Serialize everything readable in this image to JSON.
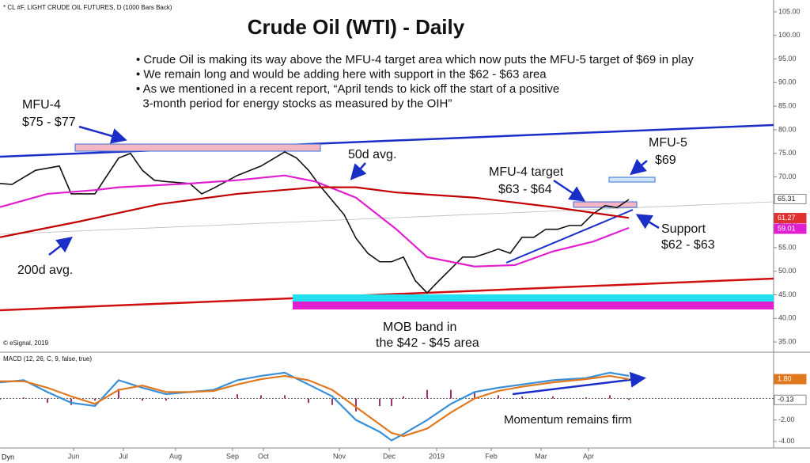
{
  "chart_data": [
    {
      "type": "line",
      "title": "Crude Oil (WTI) - Daily",
      "subtitle": "* CL #F, LIGHT CRUDE OIL FUTURES, D (1000 Bars Back)",
      "bullets": [
        [
          "• Crude Oil is making its way above the MFU-4 target area which now puts the MFU-5 target of $69 in play"
        ],
        [
          "• We remain long and would be adding here with support in the $62 - $63 area"
        ],
        [
          "• As we mentioned in a recent report, “April tends to kick off the start of a positive",
          "  3-month period for energy stocks as measured by the OIH”"
        ]
      ],
      "annotations": [
        "MFU-4",
        "$75 - $77",
        "50d avg.",
        "MFU-4 target",
        "$63 - $64",
        "MFU-5",
        "$69",
        "Support",
        "$62 - $63",
        "200d avg.",
        "MOB band in",
        "the $42 - $45 area"
      ],
      "credit": "© eSignal, 2019",
      "xlim": [
        0,
        326
      ],
      "ylim": [
        33.5,
        106.5
      ],
      "yticks": [
        {
          "value": 35,
          "label": "35.00"
        },
        {
          "value": 40,
          "label": "40.00"
        },
        {
          "value": 45,
          "label": "45.00"
        },
        {
          "value": 50,
          "label": "50.00"
        },
        {
          "value": 55,
          "label": "55.00"
        },
        {
          "value": 60,
          "label": "60.00"
        },
        {
          "value": 65,
          "label": "65.00"
        },
        {
          "value": 70,
          "label": "70.00"
        },
        {
          "value": 75,
          "label": "75.00"
        },
        {
          "value": 80,
          "label": "80.00"
        },
        {
          "value": 85,
          "label": "85.00"
        },
        {
          "value": 90,
          "label": "90.00"
        },
        {
          "value": 95,
          "label": "95.00"
        },
        {
          "value": 100,
          "label": "100.00"
        },
        {
          "value": 105,
          "label": "105.00"
        }
      ],
      "series": [
        {
          "color": "#111111",
          "x": [
            0,
            5,
            15,
            25,
            30,
            40,
            50,
            55,
            60,
            65,
            70,
            80,
            85,
            90,
            100,
            110,
            120,
            125,
            130,
            135,
            140,
            145,
            150,
            155,
            160,
            165,
            170,
            175,
            180,
            185,
            190,
            195,
            200,
            205,
            210,
            215,
            220,
            225,
            230,
            235,
            240,
            245,
            250,
            255,
            260,
            265
          ],
          "values": [
            68.6,
            68.4,
            71.4,
            72.3,
            66.4,
            66.4,
            74,
            75,
            71.4,
            69.3,
            69,
            68.6,
            66.4,
            67.6,
            70.3,
            72.3,
            75.3,
            74,
            71.4,
            68,
            65,
            62,
            57,
            53.8,
            52,
            52,
            53,
            48,
            45.4,
            48,
            50.5,
            53,
            53,
            53.8,
            54.7,
            53.8,
            57.2,
            57.2,
            58.9,
            58.9,
            59.7,
            59.7,
            62.2,
            63.9,
            63.5,
            65.2
          ]
        },
        {
          "color": "#e020d0",
          "x": [
            0,
            20,
            40,
            50,
            80,
            100,
            120,
            133,
            150,
            167,
            180,
            200,
            217,
            233,
            250,
            265
          ],
          "values": [
            63.6,
            66.4,
            67.2,
            67.8,
            68.6,
            69.3,
            70.3,
            69,
            65.6,
            58.9,
            53,
            51,
            51.3,
            54.2,
            56.3,
            59.2
          ]
        },
        {
          "color": "#c00000",
          "x": [
            0,
            33,
            67,
            100,
            133,
            150,
            167,
            200,
            233,
            265
          ],
          "values": [
            57.2,
            60.5,
            64.2,
            66.4,
            67.8,
            67.8,
            66.7,
            65.6,
            63.6,
            61.3
          ]
        }
      ],
      "last_labels": [
        65.31,
        61.27,
        59.01
      ]
    },
    {
      "type": "macd",
      "title": "MACD (12, 26, C, 9, false, true)",
      "annotations": [
        "Momentum remains firm"
      ],
      "corner_label": "Dyn",
      "xlim": [
        0,
        326
      ],
      "xticks": [
        {
          "value": 31,
          "label": "Jun"
        },
        {
          "value": 52,
          "label": "Jul"
        },
        {
          "value": 74,
          "label": "Aug"
        },
        {
          "value": 98,
          "label": "Sep"
        },
        {
          "value": 111,
          "label": "Oct"
        },
        {
          "value": 143,
          "label": "Nov"
        },
        {
          "value": 164,
          "label": "Dec"
        },
        {
          "value": 184,
          "label": "2019"
        },
        {
          "value": 207,
          "label": "Feb"
        },
        {
          "value": 228,
          "label": "Mar"
        },
        {
          "value": 248,
          "label": "Apr"
        }
      ],
      "ylim": [
        -4.6,
        3.2
      ],
      "yticks": [
        {
          "value": -4,
          "label": "-4.00"
        },
        {
          "value": -2,
          "label": "-2.00"
        }
      ],
      "x": [
        0,
        10,
        20,
        30,
        40,
        50,
        60,
        70,
        80,
        90,
        100,
        110,
        120,
        130,
        140,
        150,
        160,
        165,
        170,
        180,
        190,
        200,
        210,
        220,
        233,
        247,
        257,
        265
      ],
      "series": [
        {
          "color": "#3a8fd8",
          "values": [
            1.5,
            1.7,
            0.6,
            -0.4,
            -0.7,
            1.7,
            1,
            0.4,
            0.6,
            0.8,
            1.7,
            2.1,
            2.4,
            1.3,
            0.2,
            -2,
            -3.1,
            -3.9,
            -3.3,
            -2,
            -0.5,
            0.6,
            1,
            1.3,
            1.7,
            1.9,
            2.4,
            2.1
          ]
        },
        {
          "color": "#e07820",
          "values": [
            1.6,
            1.6,
            1,
            0.2,
            -0.5,
            0.8,
            1.2,
            0.6,
            0.6,
            0.7,
            1.3,
            1.8,
            2.1,
            1.7,
            0.8,
            -0.8,
            -2.4,
            -3.2,
            -3.5,
            -2.8,
            -1.3,
            0,
            0.7,
            1.1,
            1.5,
            1.8,
            2.1,
            1.8
          ]
        },
        {
          "color": "#a0306a",
          "values": [
            -0.1,
            0.1,
            -0.4,
            -0.6,
            -0.2,
            0.9,
            -0.2,
            -0.2,
            0,
            0.1,
            0.4,
            0.3,
            0.3,
            -0.4,
            -0.6,
            -1.2,
            -0.7,
            -0.7,
            0.2,
            0.8,
            0.8,
            0.6,
            0.3,
            0.2,
            0.2,
            0.1,
            0.3,
            -0.13
          ]
        }
      ],
      "last_labels": [
        {
          "value": 1.8,
          "label": "1.80"
        },
        -0.13
      ]
    }
  ]
}
